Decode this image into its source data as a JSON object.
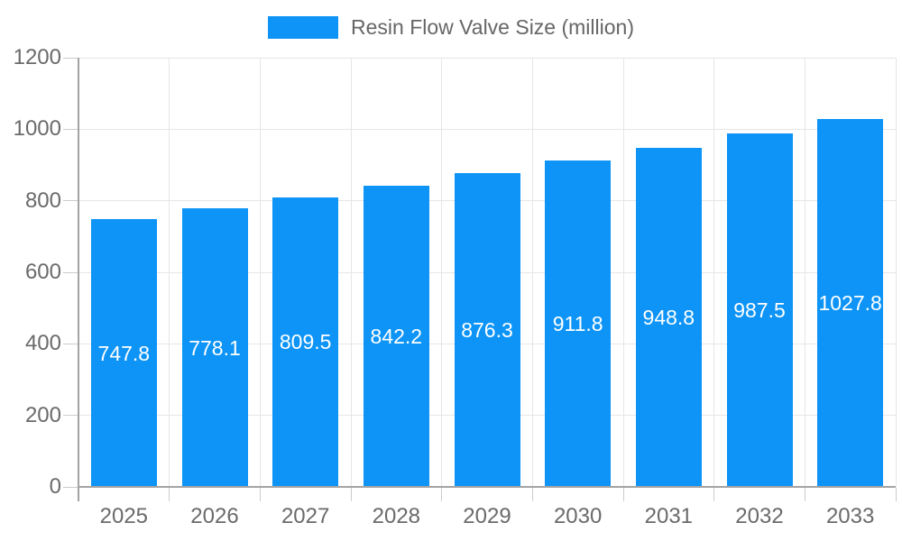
{
  "chart_data": {
    "type": "bar",
    "title": "Resin Flow Valve Size (million)",
    "legend": [
      "Resin Flow Valve Size (million)"
    ],
    "legend_position": "top-center",
    "categories": [
      "2025",
      "2026",
      "2027",
      "2028",
      "2029",
      "2030",
      "2031",
      "2032",
      "2033"
    ],
    "series": [
      {
        "name": "Resin Flow Valve Size (million)",
        "values": [
          747.8,
          778.1,
          809.5,
          842.2,
          876.3,
          911.8,
          948.8,
          987.5,
          1027.8
        ]
      }
    ],
    "value_labels": [
      "747.8",
      "778.1",
      "809.5",
      "842.2",
      "876.3",
      "911.8",
      "948.8",
      "987.5",
      "1027.8"
    ],
    "value_label_position": "inside-middle",
    "xlabel": "",
    "ylabel": "",
    "ylim": [
      0,
      1200
    ],
    "yticks": [
      0,
      200,
      400,
      600,
      800,
      1000,
      1200
    ],
    "ytick_labels": [
      "0",
      "200",
      "400",
      "600",
      "800",
      "1000",
      "1200"
    ],
    "grid": true,
    "colors": {
      "bar": "#0d94f6",
      "value_label": "#ffffff",
      "axis_label": "#6a6a6a",
      "legend_label": "#666666",
      "gridline": "#e6e6e6",
      "axis_line": "#a3a3a3",
      "tick": "#cccccc",
      "background": "#ffffff"
    }
  }
}
